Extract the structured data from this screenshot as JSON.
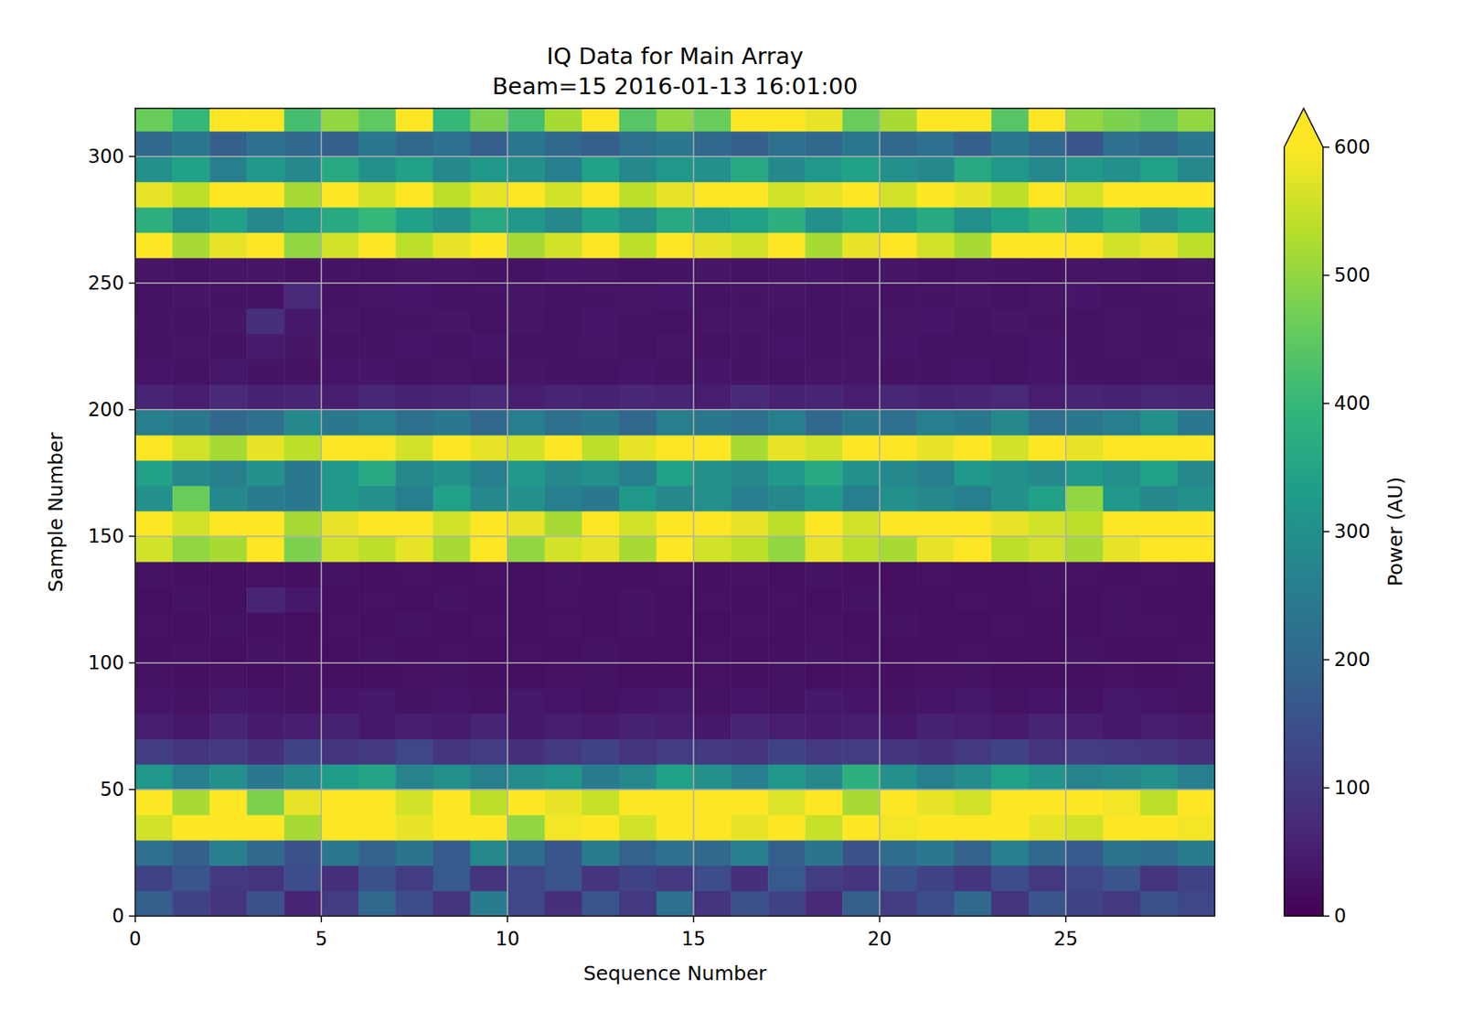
{
  "chart_data": {
    "type": "heatmap",
    "title": "IQ Data for Main Array",
    "subtitle": "Beam=15 2016-01-13 16:01:00",
    "x_label": "Sequence Number",
    "y_label": "Sample Number",
    "xlim": [
      0,
      29
    ],
    "ylim": [
      0,
      319
    ],
    "xticks": [
      0,
      5,
      10,
      15,
      20,
      25
    ],
    "yticks": [
      0,
      50,
      100,
      150,
      200,
      250,
      300
    ],
    "grid": true,
    "x_edges": [
      0,
      1,
      2,
      3,
      4,
      5,
      6,
      7,
      8,
      9,
      10,
      11,
      12,
      13,
      14,
      15,
      16,
      17,
      18,
      19,
      20,
      21,
      22,
      23,
      24,
      25,
      26,
      27,
      28,
      29
    ],
    "y_edges": [
      0,
      10,
      20,
      30,
      40,
      50,
      60,
      70,
      80,
      90,
      100,
      110,
      120,
      130,
      140,
      150,
      160,
      170,
      180,
      190,
      200,
      210,
      220,
      230,
      240,
      250,
      260,
      270,
      280,
      290,
      300,
      310,
      319
    ],
    "colorbar": {
      "range": [
        0,
        600
      ],
      "ticks": [
        0,
        100,
        200,
        300,
        400,
        500,
        600
      ],
      "label": "Power (AU)"
    },
    "cells": [
      [
        180,
        120,
        90,
        150,
        60,
        110,
        200,
        140,
        90,
        250,
        130,
        80,
        160,
        100,
        220,
        90,
        150,
        120,
        70,
        180,
        110,
        140,
        200,
        90,
        160,
        120,
        100,
        150,
        130
      ],
      [
        120,
        160,
        100,
        90,
        140,
        80,
        150,
        110,
        170,
        90,
        130,
        160,
        90,
        120,
        100,
        140,
        80,
        170,
        110,
        90,
        150,
        120,
        90,
        140,
        100,
        130,
        160,
        90,
        120
      ],
      [
        220,
        180,
        260,
        200,
        150,
        240,
        190,
        230,
        170,
        280,
        210,
        160,
        250,
        190,
        220,
        200,
        260,
        180,
        230,
        150,
        210,
        240,
        190,
        260,
        200,
        170,
        230,
        210,
        250
      ],
      [
        560,
        600,
        620,
        650,
        520,
        640,
        600,
        580,
        610,
        650,
        500,
        590,
        620,
        560,
        640,
        600,
        580,
        620,
        550,
        610,
        590,
        640,
        600,
        620,
        580,
        560,
        640,
        610,
        590
      ],
      [
        640,
        520,
        600,
        480,
        580,
        620,
        650,
        560,
        630,
        540,
        600,
        580,
        550,
        620,
        660,
        600,
        640,
        570,
        600,
        520,
        610,
        580,
        560,
        640,
        620,
        650,
        590,
        540,
        600
      ],
      [
        320,
        260,
        300,
        240,
        280,
        330,
        350,
        270,
        300,
        260,
        290,
        310,
        250,
        280,
        340,
        300,
        260,
        320,
        280,
        380,
        300,
        260,
        290,
        340,
        310,
        270,
        280,
        300,
        260
      ],
      [
        110,
        90,
        100,
        80,
        120,
        90,
        100,
        130,
        90,
        110,
        80,
        100,
        120,
        90,
        110,
        100,
        90,
        120,
        100,
        110,
        90,
        80,
        100,
        120,
        90,
        110,
        100,
        90,
        80
      ],
      [
        50,
        40,
        60,
        45,
        50,
        55,
        40,
        50,
        45,
        60,
        40,
        50,
        45,
        55,
        50,
        40,
        60,
        50,
        45,
        50,
        40,
        55,
        50,
        45,
        60,
        50,
        40,
        50,
        45
      ],
      [
        35,
        30,
        40,
        35,
        30,
        35,
        40,
        30,
        35,
        30,
        40,
        35,
        30,
        35,
        40,
        30,
        35,
        30,
        40,
        35,
        30,
        35,
        40,
        30,
        35,
        30,
        40,
        35,
        30
      ],
      [
        30,
        25,
        28,
        22,
        30,
        26,
        24,
        28,
        30,
        25,
        22,
        27,
        30,
        24,
        26,
        28,
        25,
        30,
        22,
        27,
        25,
        28,
        30,
        24,
        26,
        25,
        28,
        22,
        30
      ],
      [
        25,
        28,
        22,
        30,
        26,
        24,
        30,
        25,
        28,
        22,
        27,
        25,
        30,
        26,
        24,
        28,
        22,
        25,
        30,
        27,
        24,
        26,
        28,
        25,
        22,
        30,
        26,
        24,
        28
      ],
      [
        28,
        22,
        30,
        25,
        24,
        28,
        26,
        30,
        22,
        27,
        25,
        28,
        24,
        30,
        26,
        22,
        28,
        25,
        27,
        24,
        30,
        26,
        22,
        28,
        25,
        24,
        30,
        27,
        25
      ],
      [
        24,
        30,
        26,
        60,
        40,
        25,
        28,
        22,
        30,
        26,
        24,
        28,
        25,
        30,
        22,
        27,
        25,
        28,
        24,
        30,
        26,
        22,
        28,
        25,
        27,
        24,
        30,
        26,
        22
      ],
      [
        30,
        26,
        24,
        28,
        25,
        30,
        22,
        27,
        25,
        28,
        24,
        30,
        26,
        22,
        28,
        25,
        27,
        24,
        30,
        26,
        22,
        28,
        25,
        24,
        30,
        27,
        25,
        28,
        26
      ],
      [
        560,
        500,
        520,
        600,
        480,
        560,
        540,
        580,
        520,
        600,
        500,
        560,
        580,
        520,
        620,
        560,
        540,
        500,
        580,
        540,
        520,
        580,
        600,
        540,
        560,
        520,
        580,
        600,
        620
      ],
      [
        620,
        560,
        600,
        640,
        520,
        580,
        620,
        640,
        560,
        600,
        580,
        520,
        600,
        560,
        660,
        600,
        580,
        540,
        620,
        560,
        640,
        660,
        600,
        580,
        560,
        540,
        600,
        640,
        620
      ],
      [
        300,
        460,
        280,
        250,
        240,
        320,
        300,
        260,
        340,
        280,
        300,
        260,
        240,
        320,
        280,
        300,
        260,
        280,
        320,
        260,
        300,
        280,
        260,
        300,
        340,
        500,
        320,
        280,
        300
      ],
      [
        340,
        280,
        260,
        300,
        240,
        320,
        360,
        280,
        300,
        260,
        320,
        280,
        300,
        260,
        340,
        300,
        280,
        320,
        360,
        300,
        280,
        260,
        320,
        300,
        280,
        320,
        300,
        340,
        280
      ],
      [
        600,
        560,
        520,
        580,
        540,
        600,
        640,
        560,
        620,
        580,
        560,
        600,
        540,
        580,
        660,
        600,
        520,
        580,
        560,
        620,
        600,
        580,
        620,
        560,
        600,
        580,
        600,
        640,
        620
      ],
      [
        260,
        240,
        200,
        220,
        280,
        240,
        260,
        220,
        240,
        200,
        260,
        220,
        240,
        200,
        260,
        240,
        220,
        260,
        200,
        240,
        220,
        260,
        240,
        280,
        220,
        240,
        260,
        300,
        240
      ],
      [
        60,
        50,
        70,
        55,
        60,
        50,
        65,
        55,
        60,
        70,
        50,
        60,
        55,
        65,
        60,
        50,
        70,
        55,
        60,
        50,
        65,
        55,
        60,
        70,
        50,
        60,
        55,
        65,
        60
      ],
      [
        35,
        30,
        40,
        32,
        30,
        35,
        38,
        30,
        34,
        30,
        36,
        32,
        30,
        35,
        30,
        38,
        32,
        30,
        34,
        36,
        30,
        32,
        35,
        30,
        38,
        32,
        30,
        34,
        30
      ],
      [
        30,
        34,
        30,
        45,
        36,
        30,
        32,
        35,
        30,
        38,
        30,
        32,
        34,
        30,
        36,
        30,
        32,
        35,
        30,
        34,
        38,
        30,
        32,
        30,
        35,
        30,
        34,
        32,
        36
      ],
      [
        32,
        30,
        36,
        80,
        40,
        34,
        30,
        32,
        36,
        30,
        34,
        30,
        38,
        32,
        30,
        34,
        36,
        30,
        32,
        30,
        34,
        38,
        30,
        36,
        32,
        30,
        34,
        30,
        32
      ],
      [
        30,
        36,
        32,
        30,
        70,
        30,
        34,
        38,
        30,
        32,
        36,
        30,
        32,
        34,
        38,
        30,
        32,
        36,
        30,
        34,
        30,
        32,
        36,
        30,
        34,
        38,
        30,
        32,
        36
      ],
      [
        34,
        30,
        34,
        36,
        30,
        32,
        30,
        34,
        36,
        32,
        30,
        38,
        34,
        30,
        32,
        36,
        30,
        34,
        38,
        32,
        36,
        30,
        34,
        32,
        30,
        34,
        36,
        30,
        34
      ],
      [
        640,
        520,
        580,
        620,
        500,
        560,
        600,
        540,
        580,
        620,
        520,
        560,
        600,
        540,
        640,
        580,
        560,
        600,
        520,
        580,
        600,
        560,
        520,
        600,
        620,
        640,
        560,
        580,
        540
      ],
      [
        380,
        300,
        340,
        280,
        320,
        360,
        400,
        340,
        300,
        360,
        320,
        280,
        340,
        300,
        360,
        320,
        340,
        380,
        300,
        340,
        320,
        360,
        300,
        340,
        380,
        320,
        360,
        300,
        340
      ],
      [
        580,
        540,
        620,
        640,
        520,
        600,
        560,
        600,
        540,
        580,
        620,
        560,
        600,
        540,
        580,
        640,
        660,
        560,
        580,
        600,
        560,
        620,
        580,
        540,
        600,
        560,
        620,
        640,
        600
      ],
      [
        300,
        340,
        260,
        320,
        280,
        360,
        300,
        340,
        280,
        320,
        300,
        260,
        340,
        280,
        320,
        300,
        360,
        280,
        320,
        340,
        300,
        280,
        360,
        320,
        280,
        320,
        300,
        340,
        280
      ],
      [
        200,
        240,
        180,
        220,
        200,
        180,
        240,
        200,
        220,
        180,
        240,
        200,
        180,
        220,
        240,
        200,
        180,
        220,
        200,
        240,
        200,
        220,
        180,
        240,
        200,
        160,
        220,
        200,
        240
      ],
      [
        460,
        400,
        620,
        640,
        420,
        500,
        450,
        620,
        400,
        480,
        420,
        520,
        600,
        440,
        500,
        460,
        620,
        600,
        580,
        460,
        520,
        640,
        620,
        440,
        600,
        500,
        480,
        460,
        500
      ]
    ]
  }
}
